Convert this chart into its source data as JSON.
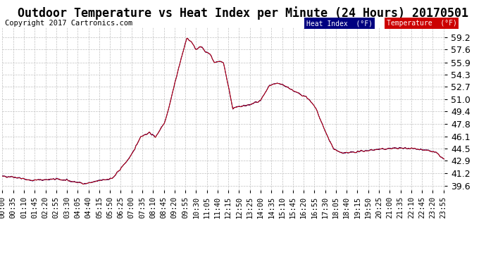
{
  "title": "Outdoor Temperature vs Heat Index per Minute (24 Hours) 20170501",
  "copyright": "Copyright 2017 Cartronics.com",
  "ylabel_right_ticks": [
    39.6,
    41.2,
    42.9,
    44.5,
    46.1,
    47.8,
    49.4,
    51.0,
    52.7,
    54.3,
    55.9,
    57.6,
    59.2
  ],
  "ylim": [
    39.0,
    60.5
  ],
  "heat_index_color": "#000080",
  "heat_index_label": "Heat Index  (°F)",
  "heat_index_box_color": "#000080",
  "temperature_color": "#cc0000",
  "temperature_label": "Temperature  (°F)",
  "temperature_box_color": "#cc0000",
  "background_color": "#ffffff",
  "grid_color": "#c0c0c0",
  "title_fontsize": 12,
  "copyright_fontsize": 7.5,
  "tick_label_fontsize": 8
}
